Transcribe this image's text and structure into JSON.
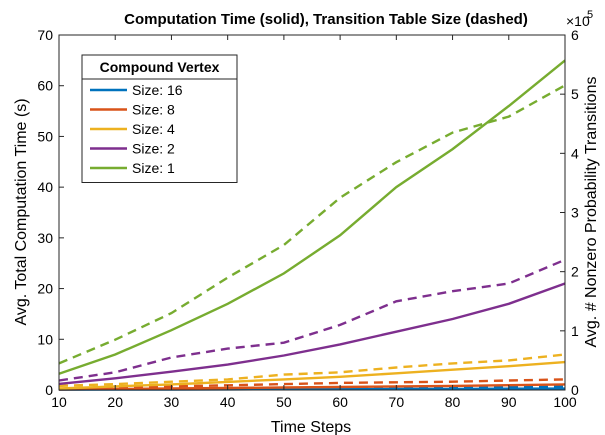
{
  "chart_data": {
    "type": "line",
    "title": "Computation Time (solid), Transition Table Size (dashed)",
    "xlabel": "Time Steps",
    "ylabel_left": "Avg. Total Computation Time (s)",
    "ylabel_right": "Avg. # Nonzero Probability Transitions",
    "right_exponent_base": "×10",
    "right_exponent_power": "5",
    "x": [
      10,
      20,
      30,
      40,
      50,
      60,
      70,
      80,
      90,
      100
    ],
    "xlim": [
      10,
      100
    ],
    "ylim_left": [
      0,
      70
    ],
    "ylim_right": [
      0,
      6
    ],
    "x_ticks": [
      "10",
      "20",
      "30",
      "40",
      "50",
      "60",
      "70",
      "80",
      "90",
      "100"
    ],
    "y_ticks_left": [
      "0",
      "10",
      "20",
      "30",
      "40",
      "50",
      "60",
      "70"
    ],
    "y_ticks_right": [
      "0",
      "1",
      "2",
      "3",
      "4",
      "5",
      "6"
    ],
    "legend_title": "Compound Vertex",
    "legend_position": "top-left",
    "grid": false,
    "series": [
      {
        "name": "Size: 16",
        "color": "#0072BD",
        "time_s": [
          0.05,
          0.08,
          0.1,
          0.12,
          0.15,
          0.18,
          0.2,
          0.22,
          0.25,
          0.28
        ],
        "transitions_1e5": [
          0.01,
          0.015,
          0.02,
          0.025,
          0.03,
          0.035,
          0.04,
          0.045,
          0.05,
          0.055
        ]
      },
      {
        "name": "Size: 8",
        "color": "#D95319",
        "time_s": [
          0.1,
          0.2,
          0.3,
          0.4,
          0.5,
          0.6,
          0.7,
          0.8,
          0.95,
          1.1
        ],
        "transitions_1e5": [
          0.02,
          0.04,
          0.06,
          0.08,
          0.1,
          0.12,
          0.13,
          0.14,
          0.16,
          0.18
        ]
      },
      {
        "name": "Size: 4",
        "color": "#EDB120",
        "time_s": [
          0.3,
          0.7,
          1.1,
          1.6,
          2.1,
          2.6,
          3.3,
          4.0,
          4.7,
          5.5
        ],
        "transitions_1e5": [
          0.07,
          0.1,
          0.14,
          0.18,
          0.26,
          0.3,
          0.38,
          0.45,
          0.5,
          0.6
        ]
      },
      {
        "name": "Size: 2",
        "color": "#7E2F8E",
        "time_s": [
          1.2,
          2.3,
          3.6,
          5.0,
          6.8,
          9.0,
          11.5,
          14.0,
          17.0,
          21.0
        ],
        "transitions_1e5": [
          0.16,
          0.3,
          0.55,
          0.7,
          0.8,
          1.1,
          1.5,
          1.67,
          1.8,
          2.2
        ]
      },
      {
        "name": "Size: 1",
        "color": "#77AC30",
        "time_s": [
          3.2,
          7.0,
          11.8,
          17.0,
          23.0,
          30.5,
          40.0,
          47.5,
          56.0,
          65.0
        ],
        "transitions_1e5": [
          0.45,
          0.85,
          1.3,
          1.9,
          2.45,
          3.25,
          3.85,
          4.35,
          4.62,
          5.15
        ]
      }
    ]
  }
}
